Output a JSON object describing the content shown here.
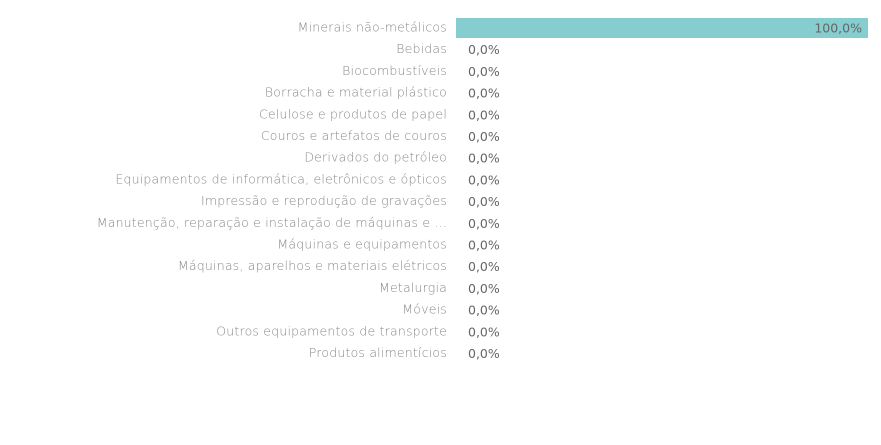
{
  "chart_data": {
    "type": "hbar",
    "categories": [
      "Minerais não-metálicos",
      "Bebidas",
      "Biocombustíveis",
      "Borracha e material plástico",
      "Celulose e produtos de papel",
      "Couros e artefatos de couros",
      "Derivados do petróleo",
      "Equipamentos de informática, eletrônicos e ópticos",
      "Impressão e reprodução de gravações",
      "Manutenção, reparação e instalação de máquinas e ...",
      "Máquinas e equipamentos",
      "Máquinas, aparelhos e materiais elétricos",
      "Metalurgia",
      "Móveis",
      "Outros equipamentos de transporte",
      "Produtos alimentícios"
    ],
    "values": [
      100,
      0,
      0,
      0,
      0,
      0,
      0,
      0,
      0,
      0,
      0,
      0,
      0,
      0,
      0,
      0
    ],
    "value_labels": [
      "100,0%",
      "0,0%",
      "0,0%",
      "0,0%",
      "0,0%",
      "0,0%",
      "0,0%",
      "0,0%",
      "0,0%",
      "0,0%",
      "0,0%",
      "0,0%",
      "0,0%",
      "0,0%",
      "0,0%",
      "0,0%"
    ],
    "color": "#86cdd0",
    "xlim": [
      0,
      100
    ]
  }
}
